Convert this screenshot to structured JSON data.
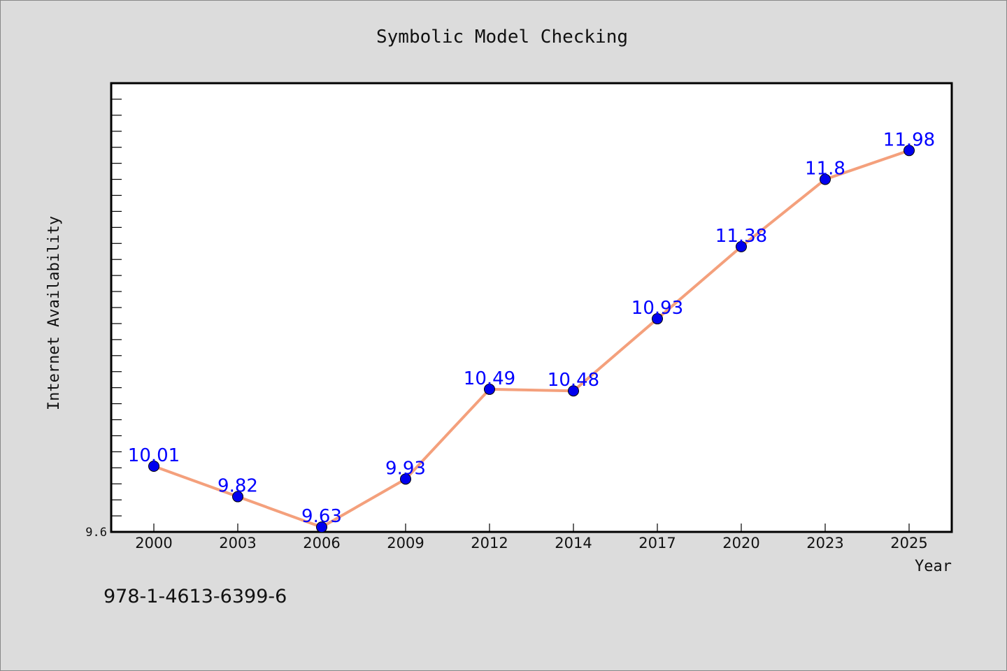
{
  "isbn": "978-1-4613-6399-6",
  "colors": {
    "background": "#dcdcdc",
    "plot_area": "#ffffff",
    "line": "#f4a07c",
    "marker": "#0000ee",
    "data_label": "#0000ff"
  },
  "chart_data": {
    "type": "line",
    "title": "Symbolic Model Checking",
    "xlabel": "Year",
    "ylabel": "Internet Availability",
    "categories": [
      "2000",
      "2003",
      "2006",
      "2009",
      "2012",
      "2014",
      "2017",
      "2020",
      "2023",
      "2025"
    ],
    "series": [
      {
        "values": [
          10.01,
          9.82,
          9.63,
          9.93,
          10.49,
          10.48,
          10.93,
          11.38,
          11.8,
          11.98
        ]
      }
    ],
    "data_labels": [
      "10.01",
      "9.82",
      "9.63",
      "9.93",
      "10.49",
      "10.48",
      "10.93",
      "11.38",
      "11.8",
      "11.98"
    ],
    "y_tick_labels": [
      {
        "value": 9.6,
        "label": "9.6"
      }
    ],
    "ylim": [
      9.6,
      12.4
    ],
    "grid": false,
    "legend": "none",
    "markers": "circle"
  }
}
